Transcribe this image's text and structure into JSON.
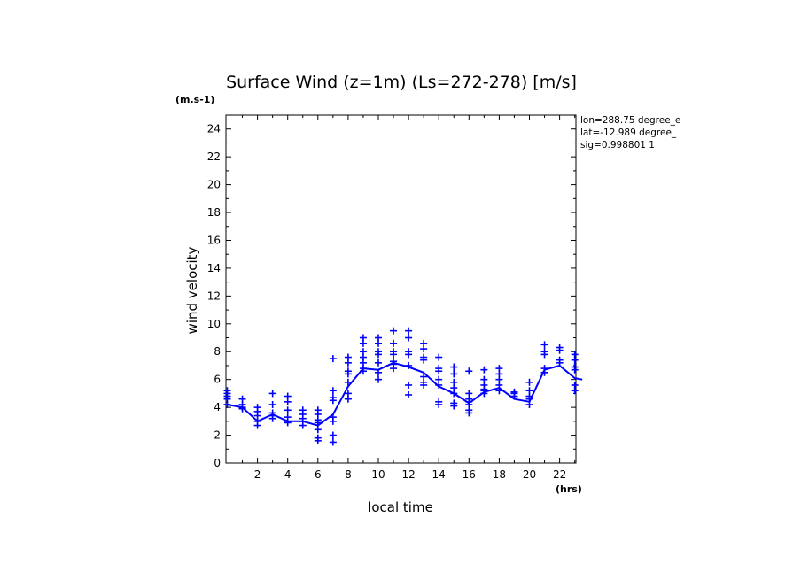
{
  "chart_data": {
    "type": "line",
    "title": "Surface Wind (z=1m) (Ls=272-278) [m/s]",
    "xlabel": "local time",
    "ylabel": "wind velocity",
    "y_unit": "(m.s-1)",
    "x_unit": "(hrs)",
    "xlim": [
      0,
      23.5
    ],
    "ylim": [
      0,
      25
    ],
    "x_ticks": [
      2,
      4,
      6,
      8,
      10,
      12,
      14,
      16,
      18,
      20,
      22
    ],
    "y_ticks": [
      0,
      2,
      4,
      6,
      8,
      10,
      12,
      14,
      16,
      18,
      20,
      22,
      24
    ],
    "grid": false,
    "annotations": [
      "lon=288.75 degree_e",
      "lat=-12.989 degree_",
      "sig=0.998801 1"
    ],
    "series": [
      {
        "marker": "line",
        "color": "#0000ff",
        "x": [
          0,
          1,
          2,
          3,
          4,
          5,
          6,
          7,
          8,
          9,
          10,
          11,
          12,
          13,
          14,
          15,
          16,
          17,
          18,
          19,
          20,
          21,
          22,
          23,
          23.5
        ],
        "y": [
          4.2,
          4.0,
          3.0,
          3.5,
          3.0,
          3.0,
          2.7,
          3.5,
          5.5,
          6.8,
          6.7,
          7.2,
          6.9,
          6.5,
          5.5,
          5.0,
          4.3,
          5.1,
          5.4,
          4.6,
          4.4,
          6.7,
          7.0,
          6.1,
          6.0
        ]
      },
      {
        "marker": "plus",
        "color": "#0000ff",
        "points": [
          [
            0,
            5.2
          ],
          [
            0,
            5.0
          ],
          [
            0,
            4.8
          ],
          [
            0,
            4.6
          ],
          [
            0,
            4.2
          ],
          [
            1,
            4.6
          ],
          [
            1,
            4.2
          ],
          [
            1,
            4.0
          ],
          [
            1,
            3.9
          ],
          [
            2,
            4.0
          ],
          [
            2,
            3.7
          ],
          [
            2,
            3.4
          ],
          [
            2,
            3.0
          ],
          [
            2,
            2.7
          ],
          [
            3,
            5.0
          ],
          [
            3,
            4.2
          ],
          [
            3,
            3.6
          ],
          [
            3,
            3.4
          ],
          [
            3,
            3.2
          ],
          [
            4,
            4.8
          ],
          [
            4,
            4.4
          ],
          [
            4,
            3.8
          ],
          [
            4,
            3.3
          ],
          [
            4,
            3.0
          ],
          [
            4,
            2.9
          ],
          [
            5,
            3.8
          ],
          [
            5,
            3.5
          ],
          [
            5,
            3.2
          ],
          [
            5,
            3.0
          ],
          [
            5,
            2.7
          ],
          [
            6,
            3.8
          ],
          [
            6,
            3.5
          ],
          [
            6,
            3.1
          ],
          [
            6,
            2.9
          ],
          [
            6,
            2.4
          ],
          [
            6,
            1.8
          ],
          [
            6,
            1.6
          ],
          [
            7,
            7.5
          ],
          [
            7,
            5.2
          ],
          [
            7,
            4.7
          ],
          [
            7,
            4.5
          ],
          [
            7,
            3.3
          ],
          [
            7,
            3.0
          ],
          [
            7,
            2.0
          ],
          [
            7,
            1.5
          ],
          [
            8,
            7.6
          ],
          [
            8,
            7.2
          ],
          [
            8,
            6.6
          ],
          [
            8,
            6.4
          ],
          [
            8,
            5.8
          ],
          [
            8,
            5.0
          ],
          [
            8,
            4.6
          ],
          [
            9,
            9.0
          ],
          [
            9,
            8.6
          ],
          [
            9,
            8.0
          ],
          [
            9,
            7.6
          ],
          [
            9,
            7.2
          ],
          [
            9,
            6.8
          ],
          [
            9,
            6.6
          ],
          [
            10,
            9.0
          ],
          [
            10,
            8.6
          ],
          [
            10,
            8.0
          ],
          [
            10,
            7.8
          ],
          [
            10,
            7.2
          ],
          [
            10,
            6.5
          ],
          [
            10,
            6.0
          ],
          [
            11,
            9.5
          ],
          [
            11,
            8.6
          ],
          [
            11,
            8.0
          ],
          [
            11,
            7.8
          ],
          [
            11,
            7.3
          ],
          [
            11,
            7.1
          ],
          [
            11,
            6.8
          ],
          [
            12,
            9.5
          ],
          [
            12,
            9.0
          ],
          [
            12,
            8.0
          ],
          [
            12,
            7.8
          ],
          [
            12,
            7.0
          ],
          [
            12,
            5.6
          ],
          [
            12,
            4.9
          ],
          [
            13,
            8.6
          ],
          [
            13,
            8.2
          ],
          [
            13,
            7.6
          ],
          [
            13,
            7.4
          ],
          [
            13,
            6.2
          ],
          [
            13,
            5.8
          ],
          [
            13,
            5.6
          ],
          [
            14,
            7.6
          ],
          [
            14,
            6.8
          ],
          [
            14,
            6.6
          ],
          [
            14,
            6.0
          ],
          [
            14,
            5.6
          ],
          [
            14,
            4.4
          ],
          [
            14,
            4.2
          ],
          [
            15,
            6.9
          ],
          [
            15,
            6.4
          ],
          [
            15,
            5.8
          ],
          [
            15,
            5.4
          ],
          [
            15,
            5.0
          ],
          [
            15,
            4.3
          ],
          [
            15,
            4.1
          ],
          [
            16,
            6.6
          ],
          [
            16,
            5.0
          ],
          [
            16,
            4.6
          ],
          [
            16,
            4.4
          ],
          [
            16,
            4.2
          ],
          [
            16,
            3.8
          ],
          [
            16,
            3.6
          ],
          [
            17,
            6.7
          ],
          [
            17,
            6.0
          ],
          [
            17,
            5.6
          ],
          [
            17,
            5.3
          ],
          [
            17,
            5.2
          ],
          [
            17,
            5.0
          ],
          [
            18,
            6.8
          ],
          [
            18,
            6.4
          ],
          [
            18,
            6.0
          ],
          [
            18,
            5.6
          ],
          [
            18,
            5.2
          ],
          [
            19,
            5.1
          ],
          [
            19,
            5.0
          ],
          [
            19,
            4.8
          ],
          [
            20,
            5.8
          ],
          [
            20,
            5.2
          ],
          [
            20,
            4.8
          ],
          [
            20,
            4.6
          ],
          [
            20,
            4.2
          ],
          [
            21,
            8.5
          ],
          [
            21,
            8.0
          ],
          [
            21,
            7.8
          ],
          [
            21,
            6.8
          ],
          [
            21,
            6.5
          ],
          [
            22,
            8.3
          ],
          [
            22,
            8.1
          ],
          [
            22,
            7.4
          ],
          [
            22,
            7.2
          ],
          [
            23,
            7.8
          ],
          [
            23,
            7.4
          ],
          [
            23,
            6.9
          ],
          [
            23,
            6.7
          ],
          [
            23,
            5.6
          ],
          [
            23,
            5.2
          ]
        ]
      }
    ]
  }
}
